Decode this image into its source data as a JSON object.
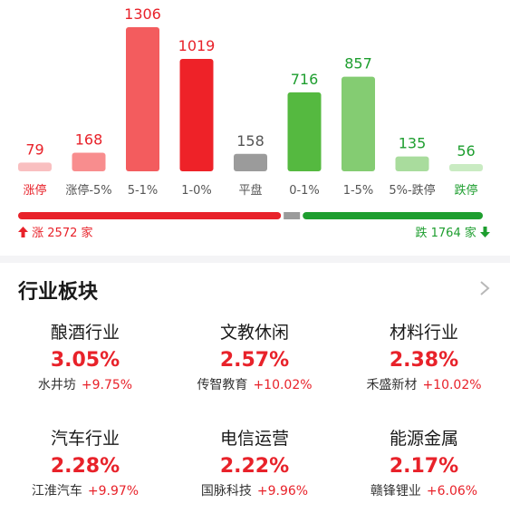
{
  "chart_data": {
    "type": "bar",
    "categories": [
      "涨停",
      "涨停-5%",
      "5-1%",
      "1-0%",
      "平盘",
      "0-1%",
      "1-5%",
      "5%-跌停",
      "跌停"
    ],
    "values": [
      79,
      168,
      1306,
      1019,
      158,
      716,
      857,
      135,
      56
    ],
    "colors": [
      "#f9bfc0",
      "#f88d8e",
      "#f35c5e",
      "#ee2228",
      "#9b9b9b",
      "#55b940",
      "#84cc72",
      "#a9dc9d",
      "#c9ebc2"
    ],
    "label_colors": [
      "#e8222a",
      "#555555",
      "#555555",
      "#555555",
      "#555555",
      "#555555",
      "#555555",
      "#555555",
      "#1e9e2f"
    ],
    "value_colors": [
      "#e8222a",
      "#e8222a",
      "#e8222a",
      "#e8222a",
      "#555555",
      "#1e9e2f",
      "#1e9e2f",
      "#1e9e2f",
      "#1e9e2f"
    ]
  },
  "stats": {
    "up_text": "涨 2572 家",
    "up_count": 2572,
    "down_text": "跌 1764 家",
    "down_count": 1764,
    "flat_count": 158
  },
  "section": {
    "title": "行业板块"
  },
  "sectors": [
    {
      "name": "酿酒行业",
      "pct": "3.05%",
      "lead": "水井坊",
      "lead_pct": "+9.75%"
    },
    {
      "name": "文教休闲",
      "pct": "2.57%",
      "lead": "传智教育",
      "lead_pct": "+10.02%"
    },
    {
      "name": "材料行业",
      "pct": "2.38%",
      "lead": "禾盛新材",
      "lead_pct": "+10.02%"
    },
    {
      "name": "汽车行业",
      "pct": "2.28%",
      "lead": "江淮汽车",
      "lead_pct": "+9.97%"
    },
    {
      "name": "电信运营",
      "pct": "2.22%",
      "lead": "国脉科技",
      "lead_pct": "+9.96%"
    },
    {
      "name": "能源金属",
      "pct": "2.17%",
      "lead": "赣锋锂业",
      "lead_pct": "+6.06%"
    }
  ]
}
